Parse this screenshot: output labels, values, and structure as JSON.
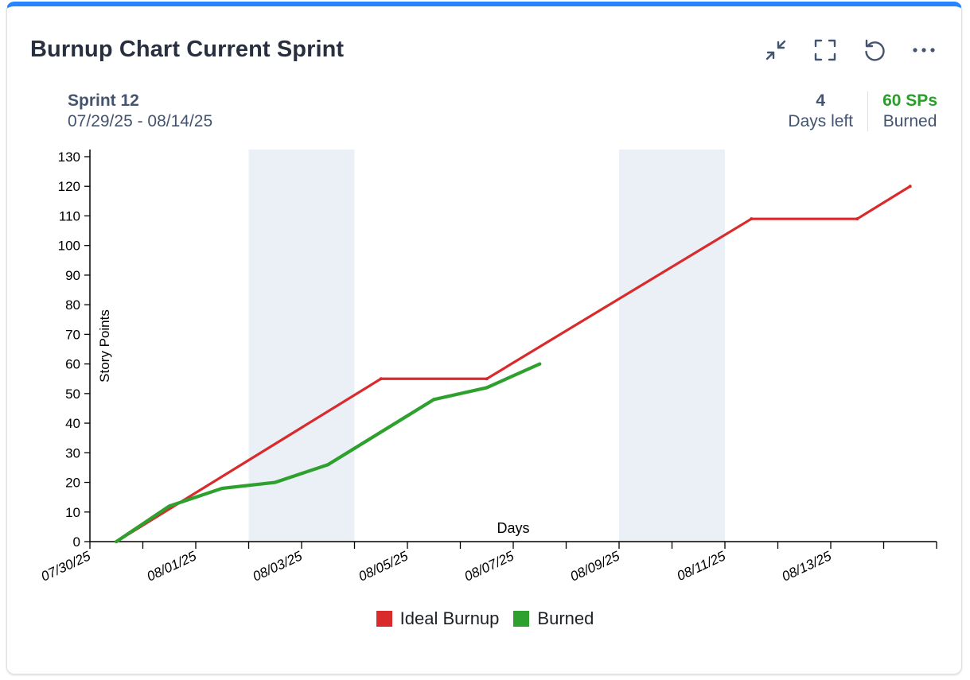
{
  "card": {
    "title": "Burnup Chart Current Sprint",
    "accent_color": "#2684ff",
    "tools": [
      {
        "name": "minimize-icon"
      },
      {
        "name": "fullscreen-icon"
      },
      {
        "name": "refresh-icon"
      },
      {
        "name": "more-icon"
      }
    ]
  },
  "sprint": {
    "name": "Sprint 12",
    "dates": "07/29/25 - 08/14/25"
  },
  "stats": {
    "days_left_value": "4",
    "days_left_label": "Days left",
    "burned_value": "60 SPs",
    "burned_label": "Burned"
  },
  "chart_data": {
    "type": "line",
    "xlabel": "Days",
    "ylabel": "Story Points",
    "ylim": [
      0,
      130
    ],
    "yticks": [
      0,
      10,
      20,
      30,
      40,
      50,
      60,
      70,
      80,
      90,
      100,
      110,
      120,
      130
    ],
    "x_range": [
      "07/30/25",
      "08/15/25"
    ],
    "x_tick_labels": [
      "07/30/25",
      "08/01/25",
      "08/03/25",
      "08/05/25",
      "08/07/25",
      "08/09/25",
      "08/11/25",
      "08/13/25"
    ],
    "weekend_bands": [
      [
        "08/02/25",
        "08/04/25"
      ],
      [
        "08/09/25",
        "08/11/25"
      ]
    ],
    "grid": false,
    "legend": "bottom",
    "series": [
      {
        "name": "Ideal Burnup",
        "color": "#d92b2b",
        "x": [
          "07/30/25",
          "08/04/25",
          "08/06/25",
          "08/11/25",
          "08/13/25",
          "08/14/25"
        ],
        "values": [
          0,
          55,
          55,
          109,
          109,
          120
        ]
      },
      {
        "name": "Burned",
        "color": "#2ea02e",
        "x": [
          "07/30/25",
          "07/31/25",
          "08/01/25",
          "08/02/25",
          "08/03/25",
          "08/05/25",
          "08/06/25",
          "08/07/25"
        ],
        "values": [
          0,
          12,
          18,
          20,
          26,
          48,
          52,
          60
        ]
      }
    ]
  }
}
